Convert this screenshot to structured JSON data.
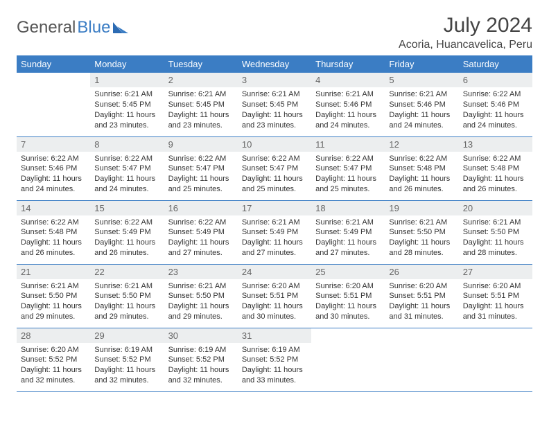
{
  "brand": {
    "part1": "General",
    "part2": "Blue"
  },
  "title": "July 2024",
  "location": "Acoria, Huancavelica, Peru",
  "colors": {
    "header_bg": "#3b7dc4",
    "header_text": "#ffffff",
    "daynum_bg": "#eceeef",
    "daynum_text": "#666666",
    "body_text": "#333333",
    "rule": "#3b7dc4",
    "background": "#ffffff"
  },
  "calendar": {
    "type": "table",
    "columns": [
      "Sunday",
      "Monday",
      "Tuesday",
      "Wednesday",
      "Thursday",
      "Friday",
      "Saturday"
    ],
    "weeks": [
      {
        "days": [
          {
            "num": "",
            "sunrise": "",
            "sunset": "",
            "daylight": ""
          },
          {
            "num": "1",
            "sunrise": "Sunrise: 6:21 AM",
            "sunset": "Sunset: 5:45 PM",
            "daylight": "Daylight: 11 hours and 23 minutes."
          },
          {
            "num": "2",
            "sunrise": "Sunrise: 6:21 AM",
            "sunset": "Sunset: 5:45 PM",
            "daylight": "Daylight: 11 hours and 23 minutes."
          },
          {
            "num": "3",
            "sunrise": "Sunrise: 6:21 AM",
            "sunset": "Sunset: 5:45 PM",
            "daylight": "Daylight: 11 hours and 23 minutes."
          },
          {
            "num": "4",
            "sunrise": "Sunrise: 6:21 AM",
            "sunset": "Sunset: 5:46 PM",
            "daylight": "Daylight: 11 hours and 24 minutes."
          },
          {
            "num": "5",
            "sunrise": "Sunrise: 6:21 AM",
            "sunset": "Sunset: 5:46 PM",
            "daylight": "Daylight: 11 hours and 24 minutes."
          },
          {
            "num": "6",
            "sunrise": "Sunrise: 6:22 AM",
            "sunset": "Sunset: 5:46 PM",
            "daylight": "Daylight: 11 hours and 24 minutes."
          }
        ]
      },
      {
        "days": [
          {
            "num": "7",
            "sunrise": "Sunrise: 6:22 AM",
            "sunset": "Sunset: 5:46 PM",
            "daylight": "Daylight: 11 hours and 24 minutes."
          },
          {
            "num": "8",
            "sunrise": "Sunrise: 6:22 AM",
            "sunset": "Sunset: 5:47 PM",
            "daylight": "Daylight: 11 hours and 24 minutes."
          },
          {
            "num": "9",
            "sunrise": "Sunrise: 6:22 AM",
            "sunset": "Sunset: 5:47 PM",
            "daylight": "Daylight: 11 hours and 25 minutes."
          },
          {
            "num": "10",
            "sunrise": "Sunrise: 6:22 AM",
            "sunset": "Sunset: 5:47 PM",
            "daylight": "Daylight: 11 hours and 25 minutes."
          },
          {
            "num": "11",
            "sunrise": "Sunrise: 6:22 AM",
            "sunset": "Sunset: 5:47 PM",
            "daylight": "Daylight: 11 hours and 25 minutes."
          },
          {
            "num": "12",
            "sunrise": "Sunrise: 6:22 AM",
            "sunset": "Sunset: 5:48 PM",
            "daylight": "Daylight: 11 hours and 26 minutes."
          },
          {
            "num": "13",
            "sunrise": "Sunrise: 6:22 AM",
            "sunset": "Sunset: 5:48 PM",
            "daylight": "Daylight: 11 hours and 26 minutes."
          }
        ]
      },
      {
        "days": [
          {
            "num": "14",
            "sunrise": "Sunrise: 6:22 AM",
            "sunset": "Sunset: 5:48 PM",
            "daylight": "Daylight: 11 hours and 26 minutes."
          },
          {
            "num": "15",
            "sunrise": "Sunrise: 6:22 AM",
            "sunset": "Sunset: 5:49 PM",
            "daylight": "Daylight: 11 hours and 26 minutes."
          },
          {
            "num": "16",
            "sunrise": "Sunrise: 6:22 AM",
            "sunset": "Sunset: 5:49 PM",
            "daylight": "Daylight: 11 hours and 27 minutes."
          },
          {
            "num": "17",
            "sunrise": "Sunrise: 6:21 AM",
            "sunset": "Sunset: 5:49 PM",
            "daylight": "Daylight: 11 hours and 27 minutes."
          },
          {
            "num": "18",
            "sunrise": "Sunrise: 6:21 AM",
            "sunset": "Sunset: 5:49 PM",
            "daylight": "Daylight: 11 hours and 27 minutes."
          },
          {
            "num": "19",
            "sunrise": "Sunrise: 6:21 AM",
            "sunset": "Sunset: 5:50 PM",
            "daylight": "Daylight: 11 hours and 28 minutes."
          },
          {
            "num": "20",
            "sunrise": "Sunrise: 6:21 AM",
            "sunset": "Sunset: 5:50 PM",
            "daylight": "Daylight: 11 hours and 28 minutes."
          }
        ]
      },
      {
        "days": [
          {
            "num": "21",
            "sunrise": "Sunrise: 6:21 AM",
            "sunset": "Sunset: 5:50 PM",
            "daylight": "Daylight: 11 hours and 29 minutes."
          },
          {
            "num": "22",
            "sunrise": "Sunrise: 6:21 AM",
            "sunset": "Sunset: 5:50 PM",
            "daylight": "Daylight: 11 hours and 29 minutes."
          },
          {
            "num": "23",
            "sunrise": "Sunrise: 6:21 AM",
            "sunset": "Sunset: 5:50 PM",
            "daylight": "Daylight: 11 hours and 29 minutes."
          },
          {
            "num": "24",
            "sunrise": "Sunrise: 6:20 AM",
            "sunset": "Sunset: 5:51 PM",
            "daylight": "Daylight: 11 hours and 30 minutes."
          },
          {
            "num": "25",
            "sunrise": "Sunrise: 6:20 AM",
            "sunset": "Sunset: 5:51 PM",
            "daylight": "Daylight: 11 hours and 30 minutes."
          },
          {
            "num": "26",
            "sunrise": "Sunrise: 6:20 AM",
            "sunset": "Sunset: 5:51 PM",
            "daylight": "Daylight: 11 hours and 31 minutes."
          },
          {
            "num": "27",
            "sunrise": "Sunrise: 6:20 AM",
            "sunset": "Sunset: 5:51 PM",
            "daylight": "Daylight: 11 hours and 31 minutes."
          }
        ]
      },
      {
        "days": [
          {
            "num": "28",
            "sunrise": "Sunrise: 6:20 AM",
            "sunset": "Sunset: 5:52 PM",
            "daylight": "Daylight: 11 hours and 32 minutes."
          },
          {
            "num": "29",
            "sunrise": "Sunrise: 6:19 AM",
            "sunset": "Sunset: 5:52 PM",
            "daylight": "Daylight: 11 hours and 32 minutes."
          },
          {
            "num": "30",
            "sunrise": "Sunrise: 6:19 AM",
            "sunset": "Sunset: 5:52 PM",
            "daylight": "Daylight: 11 hours and 32 minutes."
          },
          {
            "num": "31",
            "sunrise": "Sunrise: 6:19 AM",
            "sunset": "Sunset: 5:52 PM",
            "daylight": "Daylight: 11 hours and 33 minutes."
          },
          {
            "num": "",
            "sunrise": "",
            "sunset": "",
            "daylight": ""
          },
          {
            "num": "",
            "sunrise": "",
            "sunset": "",
            "daylight": ""
          },
          {
            "num": "",
            "sunrise": "",
            "sunset": "",
            "daylight": ""
          }
        ]
      }
    ]
  }
}
